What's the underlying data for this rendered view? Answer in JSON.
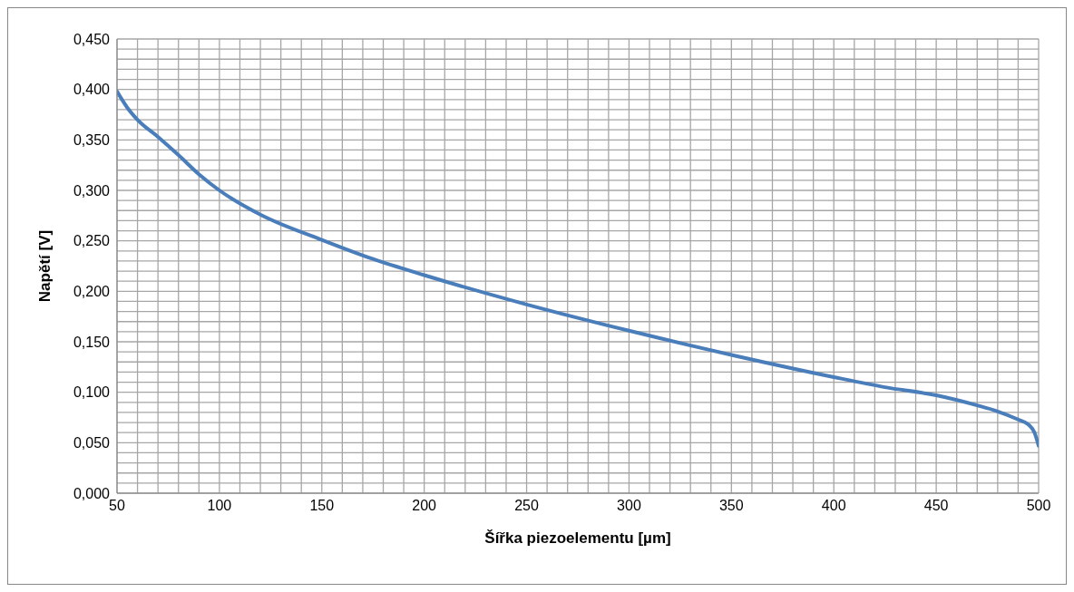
{
  "chart_data": {
    "type": "line",
    "xlabel": "Šířka piezoelementu [µm]",
    "ylabel": "Napětí [V]",
    "x": [
      50,
      55,
      60,
      70,
      80,
      90,
      100,
      120,
      150,
      175,
      200,
      250,
      300,
      350,
      400,
      425,
      450,
      470,
      480,
      490,
      495,
      498,
      500
    ],
    "series": [
      {
        "color": "#4a7ebb",
        "values": [
          0.398,
          0.382,
          0.37,
          0.353,
          0.335,
          0.316,
          0.3,
          0.276,
          0.251,
          0.232,
          0.216,
          0.187,
          0.161,
          0.137,
          0.115,
          0.105,
          0.097,
          0.087,
          0.081,
          0.073,
          0.068,
          0.06,
          0.047
        ]
      }
    ],
    "xlim": [
      50,
      500
    ],
    "xticks": [
      50,
      {
        "value": 60,
        "label": null
      },
      {
        "value": 70,
        "label": null
      },
      {
        "value": 80,
        "label": null
      },
      {
        "value": 90,
        "label": null
      },
      100,
      {
        "value": 110,
        "label": null
      },
      {
        "value": 120,
        "label": null
      },
      {
        "value": 130,
        "label": null
      },
      {
        "value": 140,
        "label": null
      },
      150,
      {
        "value": 160,
        "label": null
      },
      {
        "value": 170,
        "label": null
      },
      {
        "value": 180,
        "label": null
      },
      {
        "value": 190,
        "label": null
      },
      200,
      {
        "value": 210,
        "label": null
      },
      {
        "value": 220,
        "label": null
      },
      {
        "value": 230,
        "label": null
      },
      {
        "value": 240,
        "label": null
      },
      250,
      {
        "value": 260,
        "label": null
      },
      {
        "value": 270,
        "label": null
      },
      {
        "value": 280,
        "label": null
      },
      {
        "value": 290,
        "label": null
      },
      300,
      {
        "value": 310,
        "label": null
      },
      {
        "value": 320,
        "label": null
      },
      {
        "value": 330,
        "label": null
      },
      {
        "value": 340,
        "label": null
      },
      350,
      {
        "value": 360,
        "label": null
      },
      {
        "value": 370,
        "label": null
      },
      {
        "value": 380,
        "label": null
      },
      {
        "value": 390,
        "label": null
      },
      400,
      {
        "value": 410,
        "label": null
      },
      {
        "value": 420,
        "label": null
      },
      {
        "value": 430,
        "label": null
      },
      {
        "value": 440,
        "label": null
      },
      450,
      {
        "value": 460,
        "label": null
      },
      {
        "value": 470,
        "label": null
      },
      {
        "value": 480,
        "label": null
      },
      {
        "value": 490,
        "label": null
      },
      500
    ],
    "ylim": [
      0,
      0.45
    ],
    "yticks": [
      {
        "value": 0,
        "label": "0,000"
      },
      {
        "value": 0.01,
        "label": null
      },
      {
        "value": 0.02,
        "label": null
      },
      {
        "value": 0.03,
        "label": null
      },
      {
        "value": 0.04,
        "label": null
      },
      {
        "value": 0.05,
        "label": "0,050"
      },
      {
        "value": 0.06,
        "label": null
      },
      {
        "value": 0.07,
        "label": null
      },
      {
        "value": 0.08,
        "label": null
      },
      {
        "value": 0.09,
        "label": null
      },
      {
        "value": 0.1,
        "label": "0,100"
      },
      {
        "value": 0.11,
        "label": null
      },
      {
        "value": 0.12,
        "label": null
      },
      {
        "value": 0.13,
        "label": null
      },
      {
        "value": 0.14,
        "label": null
      },
      {
        "value": 0.15,
        "label": "0,150"
      },
      {
        "value": 0.16,
        "label": null
      },
      {
        "value": 0.17,
        "label": null
      },
      {
        "value": 0.18,
        "label": null
      },
      {
        "value": 0.19,
        "label": null
      },
      {
        "value": 0.2,
        "label": "0,200"
      },
      {
        "value": 0.21,
        "label": null
      },
      {
        "value": 0.22,
        "label": null
      },
      {
        "value": 0.23,
        "label": null
      },
      {
        "value": 0.24,
        "label": null
      },
      {
        "value": 0.25,
        "label": "0,250"
      },
      {
        "value": 0.26,
        "label": null
      },
      {
        "value": 0.27,
        "label": null
      },
      {
        "value": 0.28,
        "label": null
      },
      {
        "value": 0.29,
        "label": null
      },
      {
        "value": 0.3,
        "label": "0,300"
      },
      {
        "value": 0.31,
        "label": null
      },
      {
        "value": 0.32,
        "label": null
      },
      {
        "value": 0.33,
        "label": null
      },
      {
        "value": 0.34,
        "label": null
      },
      {
        "value": 0.35,
        "label": "0,350"
      },
      {
        "value": 0.36,
        "label": null
      },
      {
        "value": 0.37,
        "label": null
      },
      {
        "value": 0.38,
        "label": null
      },
      {
        "value": 0.39,
        "label": null
      },
      {
        "value": 0.4,
        "label": "0,400"
      },
      {
        "value": 0.41,
        "label": null
      },
      {
        "value": 0.42,
        "label": null
      },
      {
        "value": 0.43,
        "label": null
      },
      {
        "value": 0.44,
        "label": null
      },
      {
        "value": 0.45,
        "label": "0,450"
      }
    ],
    "grid": true,
    "legend": false,
    "marker": "none",
    "line_style": "solid"
  }
}
